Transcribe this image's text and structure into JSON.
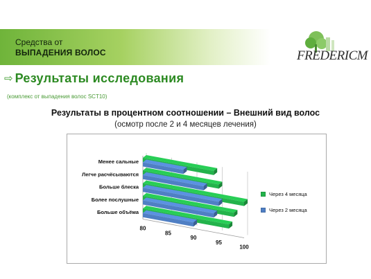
{
  "header": {
    "line1": "Средства от",
    "line2": "ВЫПАДЕНИЯ ВОЛОС"
  },
  "logo": {
    "text": "FREDERICM",
    "icon": "tree-logo-icon"
  },
  "section": {
    "arrow_icon": "hollow-arrow-icon",
    "title": "Результаты исследования",
    "note": "(комплекс от выпадения волос SCT10)"
  },
  "colors": {
    "header_green": "#6fb43a",
    "section_green": "#2c8a22",
    "series_green": "#23b34b",
    "series_blue": "#4f7fc4"
  },
  "chart_data": {
    "type": "bar",
    "orientation": "horizontal",
    "title": "Результаты в процентном соотношении – Внешний вид волос",
    "subtitle": "(осмотр после 2 и 4 месяцев лечения)",
    "categories": [
      "Менее сальные",
      "Легче расчёсываются",
      "Больше блеска",
      "Более послушные",
      "Больше объёма"
    ],
    "series": [
      {
        "name": "Через 4 месяца",
        "color": "#23b34b",
        "values": [
          94,
          95,
          100,
          98,
          97
        ]
      },
      {
        "name": "Через 2 месяца",
        "color": "#4f7fc4",
        "values": [
          88,
          92,
          95,
          94,
          90
        ]
      }
    ],
    "xticks": [
      80,
      85,
      90,
      95,
      100
    ],
    "xlim": [
      80,
      100
    ],
    "xlabel": "",
    "ylabel": "",
    "grid": true,
    "legend_position": "right"
  }
}
